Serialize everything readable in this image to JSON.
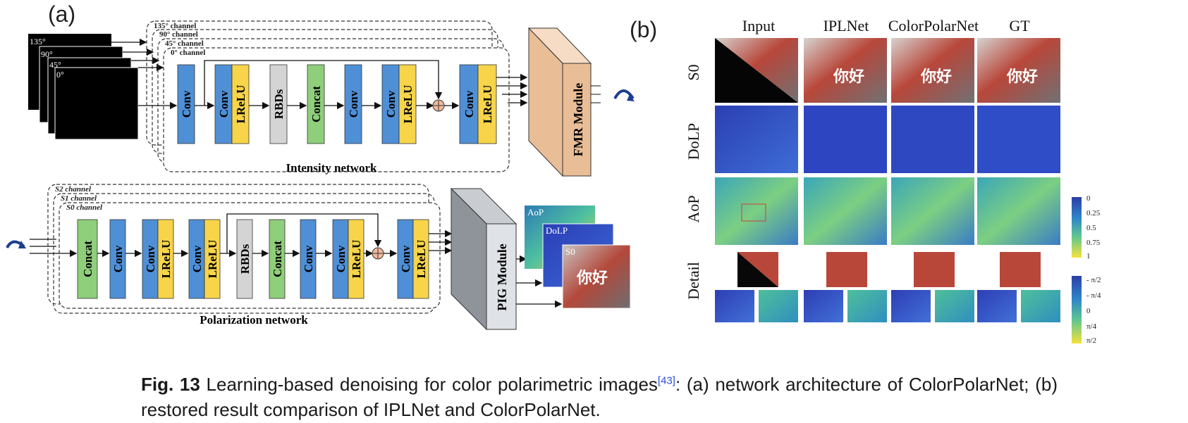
{
  "panel_a": "(a)",
  "panel_b": "(b)",
  "intensity": {
    "inputs": [
      "135°",
      "90°",
      "45°",
      "0°"
    ],
    "channels": [
      "135° channel",
      "90° channel",
      "45° channel",
      "0° channel"
    ],
    "blocks": [
      {
        "label": "Conv",
        "type": "conv"
      },
      {
        "label": "Conv",
        "label2": "LReLU",
        "type": "convrelu"
      },
      {
        "label": "RBDs",
        "type": "rbd"
      },
      {
        "label": "Concat",
        "type": "concat"
      },
      {
        "label": "Conv",
        "type": "conv"
      },
      {
        "label": "Conv",
        "label2": "LReLU",
        "type": "convrelu"
      },
      {
        "label": "Conv",
        "label2": "LReLU",
        "type": "convrelu"
      }
    ],
    "module": "FMR Module",
    "title": "Intensity network"
  },
  "polarization": {
    "channels": [
      "S2 channel",
      "S1 channel",
      "S0 channel"
    ],
    "blocks": [
      {
        "label": "Concat",
        "type": "concat"
      },
      {
        "label": "Conv",
        "type": "conv"
      },
      {
        "label": "Conv",
        "label2": "LReLU",
        "type": "convrelu"
      },
      {
        "label": "Conv",
        "label2": "LReLU",
        "type": "convrelu"
      },
      {
        "label": "RBDs",
        "type": "rbd"
      },
      {
        "label": "Concat",
        "type": "concat"
      },
      {
        "label": "Conv",
        "type": "conv"
      },
      {
        "label": "Conv",
        "label2": "LReLU",
        "type": "convrelu"
      },
      {
        "label": "Conv",
        "label2": "LReLU",
        "type": "convrelu"
      }
    ],
    "module": "PIG Module",
    "outputs": [
      "AoP",
      "DoLP",
      "S0"
    ],
    "title": "Polarization network"
  },
  "comparison": {
    "columns": [
      "Input",
      "IPLNet",
      "ColorPolarNet",
      "GT"
    ],
    "rows": [
      "S0",
      "DoLP",
      "AoP",
      "Detail"
    ],
    "colorbar1": [
      "0",
      "0.25",
      "0.5",
      "0.75",
      "1"
    ],
    "colorbar2": [
      "- π/2",
      "- π/4",
      "0",
      "π/4",
      "π/2"
    ]
  },
  "caption": {
    "fig": "Fig. 13",
    "text1": " Learning-based denoising for color polarimetric images",
    "ref": "[43]",
    "text2": ": (a) network architecture of ColorPolarNet; (b) restored result comparison of IPLNet and ColorPolarNet."
  },
  "colors": {
    "conv": "#4f8fd6",
    "lrelu": "#f7d44a",
    "rbd": "#d4d4d4",
    "concat": "#8fce7a",
    "fmr": "#e9bd95",
    "pig": "#8e949a"
  }
}
